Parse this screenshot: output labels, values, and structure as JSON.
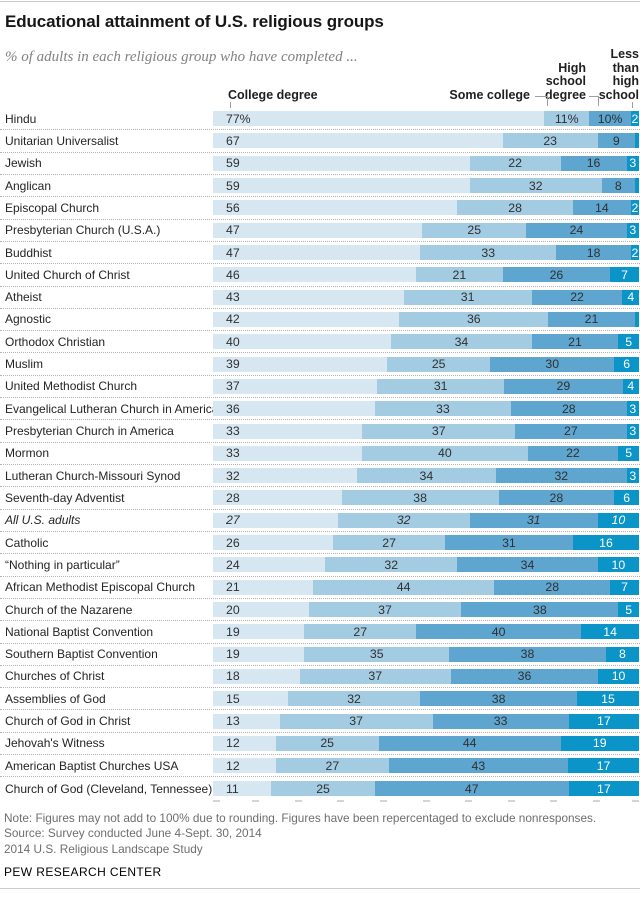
{
  "header": {
    "title": "Educational attainment of U.S. religious groups",
    "subtitle": "% of adults in each religious group who have completed ..."
  },
  "chart_data": {
    "type": "bar",
    "stacked": true,
    "orientation": "horizontal",
    "xlim": [
      0,
      100
    ],
    "unit": "percent",
    "columns": {
      "college": "College degree",
      "some_college": "Some college",
      "high_school": "High school degree",
      "less_than_hs": "Less than high school"
    },
    "series_names": [
      "College degree",
      "Some college",
      "High school degree",
      "Less than high school"
    ],
    "segment_colors": [
      "#d7e7f2",
      "#a3cbe2",
      "#5ea6d0",
      "#0a94c8"
    ],
    "rows": [
      {
        "name": "Hindu",
        "values": [
          77,
          11,
          10,
          2
        ],
        "labels": [
          "77%",
          "11%",
          "10%",
          "2"
        ],
        "italic": false
      },
      {
        "name": "Unitarian Universalist",
        "values": [
          67,
          23,
          9,
          1
        ],
        "labels": [
          "67",
          "23",
          "9",
          ""
        ],
        "italic": false
      },
      {
        "name": "Jewish",
        "values": [
          59,
          22,
          16,
          3
        ],
        "labels": [
          "59",
          "22",
          "16",
          "3"
        ],
        "italic": false
      },
      {
        "name": "Anglican",
        "values": [
          59,
          32,
          8,
          1
        ],
        "labels": [
          "59",
          "32",
          "8",
          ""
        ],
        "italic": false
      },
      {
        "name": "Episcopal Church",
        "values": [
          56,
          28,
          14,
          2
        ],
        "labels": [
          "56",
          "28",
          "14",
          "2"
        ],
        "italic": false
      },
      {
        "name": "Presbyterian Church (U.S.A.)",
        "values": [
          47,
          25,
          24,
          3
        ],
        "labels": [
          "47",
          "25",
          "24",
          "3"
        ],
        "italic": false
      },
      {
        "name": "Buddhist",
        "values": [
          47,
          33,
          18,
          2
        ],
        "labels": [
          "47",
          "33",
          "18",
          "2"
        ],
        "italic": false
      },
      {
        "name": "United Church of Christ",
        "values": [
          46,
          21,
          26,
          7
        ],
        "labels": [
          "46",
          "21",
          "26",
          "7"
        ],
        "italic": false
      },
      {
        "name": "Atheist",
        "values": [
          43,
          31,
          22,
          4
        ],
        "labels": [
          "43",
          "31",
          "22",
          "4"
        ],
        "italic": false
      },
      {
        "name": "Agnostic",
        "values": [
          42,
          36,
          21,
          1
        ],
        "labels": [
          "42",
          "36",
          "21",
          ""
        ],
        "italic": false
      },
      {
        "name": "Orthodox Christian",
        "values": [
          40,
          34,
          21,
          5
        ],
        "labels": [
          "40",
          "34",
          "21",
          "5"
        ],
        "italic": false
      },
      {
        "name": "Muslim",
        "values": [
          39,
          25,
          30,
          6
        ],
        "labels": [
          "39",
          "25",
          "30",
          "6"
        ],
        "italic": false
      },
      {
        "name": "United Methodist Church",
        "values": [
          37,
          31,
          29,
          4
        ],
        "labels": [
          "37",
          "31",
          "29",
          "4"
        ],
        "italic": false
      },
      {
        "name": "Evangelical Lutheran Church in America",
        "values": [
          36,
          33,
          28,
          3
        ],
        "labels": [
          "36",
          "33",
          "28",
          "3"
        ],
        "italic": false
      },
      {
        "name": "Presbyterian Church in America",
        "values": [
          33,
          37,
          27,
          3
        ],
        "labels": [
          "33",
          "37",
          "27",
          "3"
        ],
        "italic": false
      },
      {
        "name": "Mormon",
        "values": [
          33,
          40,
          22,
          5
        ],
        "labels": [
          "33",
          "40",
          "22",
          "5"
        ],
        "italic": false
      },
      {
        "name": "Lutheran Church-Missouri Synod",
        "values": [
          32,
          34,
          32,
          3
        ],
        "labels": [
          "32",
          "34",
          "32",
          "3"
        ],
        "italic": false
      },
      {
        "name": "Seventh-day Adventist",
        "values": [
          28,
          38,
          28,
          6
        ],
        "labels": [
          "28",
          "38",
          "28",
          "6"
        ],
        "italic": false
      },
      {
        "name": "All U.S. adults",
        "values": [
          27,
          32,
          31,
          10
        ],
        "labels": [
          "27",
          "32",
          "31",
          "10"
        ],
        "italic": true
      },
      {
        "name": "Catholic",
        "values": [
          26,
          27,
          31,
          16
        ],
        "labels": [
          "26",
          "27",
          "31",
          "16"
        ],
        "italic": false
      },
      {
        "name": "“Nothing in particular”",
        "values": [
          24,
          32,
          34,
          10
        ],
        "labels": [
          "24",
          "32",
          "34",
          "10"
        ],
        "italic": false
      },
      {
        "name": "African Methodist Episcopal Church",
        "values": [
          21,
          44,
          28,
          7
        ],
        "labels": [
          "21",
          "44",
          "28",
          "7"
        ],
        "italic": false
      },
      {
        "name": "Church of the Nazarene",
        "values": [
          20,
          37,
          38,
          5
        ],
        "labels": [
          "20",
          "37",
          "38",
          "5"
        ],
        "italic": false
      },
      {
        "name": "National Baptist Convention",
        "values": [
          19,
          27,
          40,
          14
        ],
        "labels": [
          "19",
          "27",
          "40",
          "14"
        ],
        "italic": false
      },
      {
        "name": "Southern Baptist Convention",
        "values": [
          19,
          35,
          38,
          8
        ],
        "labels": [
          "19",
          "35",
          "38",
          "8"
        ],
        "italic": false
      },
      {
        "name": "Churches of Christ",
        "values": [
          18,
          37,
          36,
          10
        ],
        "labels": [
          "18",
          "37",
          "36",
          "10"
        ],
        "italic": false
      },
      {
        "name": "Assemblies of God",
        "values": [
          15,
          32,
          38,
          15
        ],
        "labels": [
          "15",
          "32",
          "38",
          "15"
        ],
        "italic": false
      },
      {
        "name": "Church of God in Christ",
        "values": [
          13,
          37,
          33,
          17
        ],
        "labels": [
          "13",
          "37",
          "33",
          "17"
        ],
        "italic": false
      },
      {
        "name": "Jehovah's Witness",
        "values": [
          12,
          25,
          44,
          19
        ],
        "labels": [
          "12",
          "25",
          "44",
          "19"
        ],
        "italic": false
      },
      {
        "name": "American Baptist Churches USA",
        "values": [
          12,
          27,
          43,
          17
        ],
        "labels": [
          "12",
          "27",
          "43",
          "17"
        ],
        "italic": false
      },
      {
        "name": "Church of God (Cleveland, Tennessee)",
        "values": [
          11,
          25,
          47,
          17
        ],
        "labels": [
          "11",
          "25",
          "47",
          "17"
        ],
        "italic": false
      }
    ]
  },
  "footer": {
    "note": "Note: Figures may not add to 100% due to rounding. Figures have been repercentaged to exclude nonresponses.",
    "source": "Source: Survey conducted June 4-Sept. 30, 2014",
    "study": "2014 U.S. Religious Landscape Study",
    "brand": "PEW RESEARCH CENTER"
  }
}
